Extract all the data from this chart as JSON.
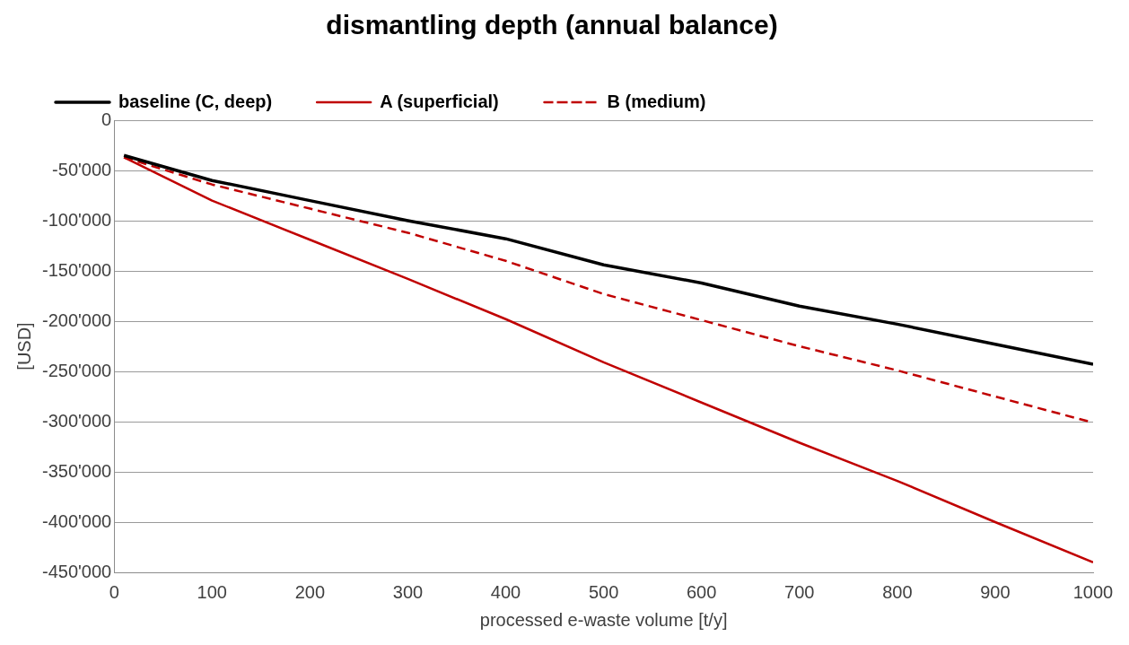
{
  "chart_data": {
    "type": "line",
    "title": "dismantling depth (annual balance)",
    "xlabel": "processed e-waste volume [t/y]",
    "ylabel": "[USD]",
    "x": [
      10,
      100,
      200,
      300,
      400,
      500,
      600,
      700,
      800,
      900,
      1000
    ],
    "series": [
      {
        "name": "baseline (C, deep)",
        "color": "#000000",
        "line_style": "solid",
        "values": [
          -35000,
          -60000,
          -80000,
          -100000,
          -118000,
          -144000,
          -162000,
          -185000,
          -203000,
          -223000,
          -243000
        ]
      },
      {
        "name": "A (superficial)",
        "color": "#c00000",
        "line_style": "solid",
        "values": [
          -37000,
          -80000,
          -119000,
          -158000,
          -198000,
          -241000,
          -281000,
          -321000,
          -359000,
          -400000,
          -440000
        ]
      },
      {
        "name": "B (medium)",
        "color": "#c00000",
        "line_style": "dashed",
        "values": [
          -37000,
          -64000,
          -88000,
          -112000,
          -140000,
          -173000,
          -199000,
          -225000,
          -249000,
          -275000,
          -301000
        ]
      }
    ],
    "xlim": [
      0,
      1000
    ],
    "xticks": [
      0,
      100,
      200,
      300,
      400,
      500,
      600,
      700,
      800,
      900,
      1000
    ],
    "ylim": [
      -450000,
      0
    ],
    "yticks": [
      {
        "value": -450000,
        "label": "-450'000"
      },
      {
        "value": -400000,
        "label": "-400'000"
      },
      {
        "value": -350000,
        "label": "-350'000"
      },
      {
        "value": -300000,
        "label": "-300'000"
      },
      {
        "value": -250000,
        "label": "-250'000"
      },
      {
        "value": -200000,
        "label": "-200'000"
      },
      {
        "value": -150000,
        "label": "-150'000"
      },
      {
        "value": -100000,
        "label": "-100'000"
      },
      {
        "value": -50000,
        "label": "-50'000"
      },
      0
    ],
    "grid": "y",
    "legend": "top",
    "marker": "none"
  }
}
